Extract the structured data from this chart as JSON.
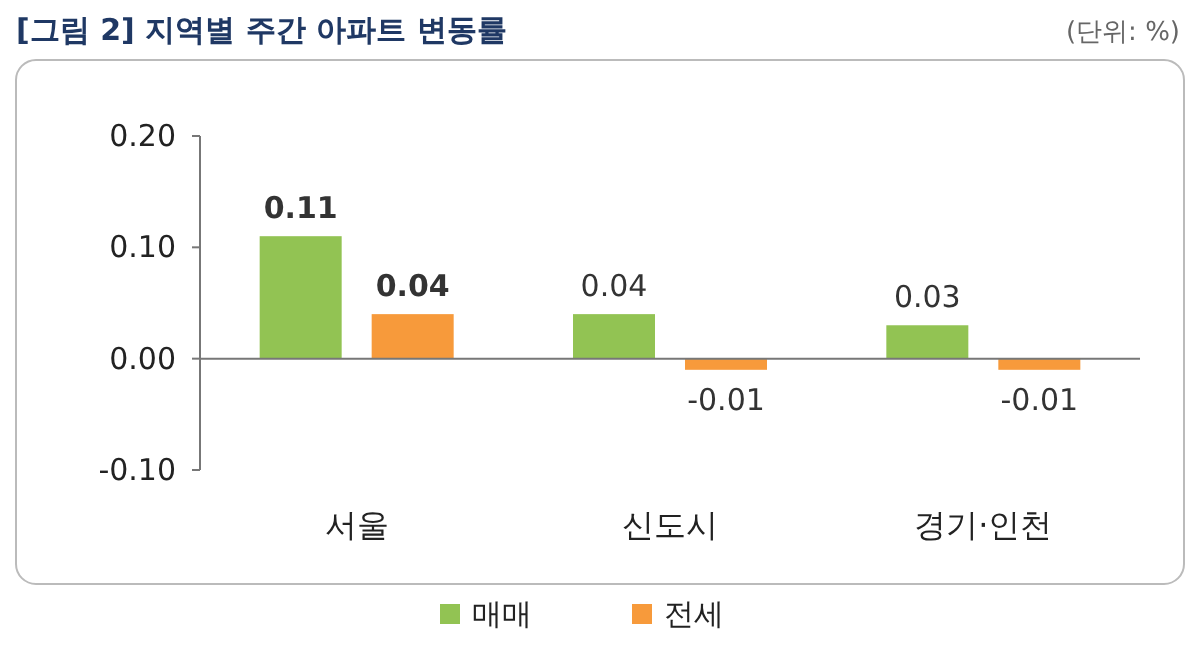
{
  "chart_data": {
    "type": "bar",
    "title": "[그림 2] 지역별 주간 아파트 변동률",
    "annotations": [
      "(단위: %)"
    ],
    "categories": [
      "서울",
      "신도시",
      "경기·인천"
    ],
    "series": [
      {
        "name": "매매",
        "color": "#92c353",
        "values": [
          0.11,
          0.04,
          0.03
        ],
        "value_labels": [
          "**0.11**",
          "0.04",
          "0.03"
        ]
      },
      {
        "name": "전세",
        "color": "#f79a3b",
        "values": [
          0.04,
          -0.01,
          -0.01
        ],
        "value_labels": [
          "**0.04**",
          "-0.01",
          "-0.01"
        ]
      }
    ],
    "ylim": [
      -0.1,
      0.2
    ],
    "yticks": [
      {
        "value": -0.1,
        "label": "-0.10"
      },
      {
        "value": 0,
        "label": "0.00"
      },
      {
        "value": 0.1,
        "label": "0.10"
      },
      {
        "value": 0.2,
        "label": "0.20"
      }
    ],
    "legend": "bottom"
  }
}
